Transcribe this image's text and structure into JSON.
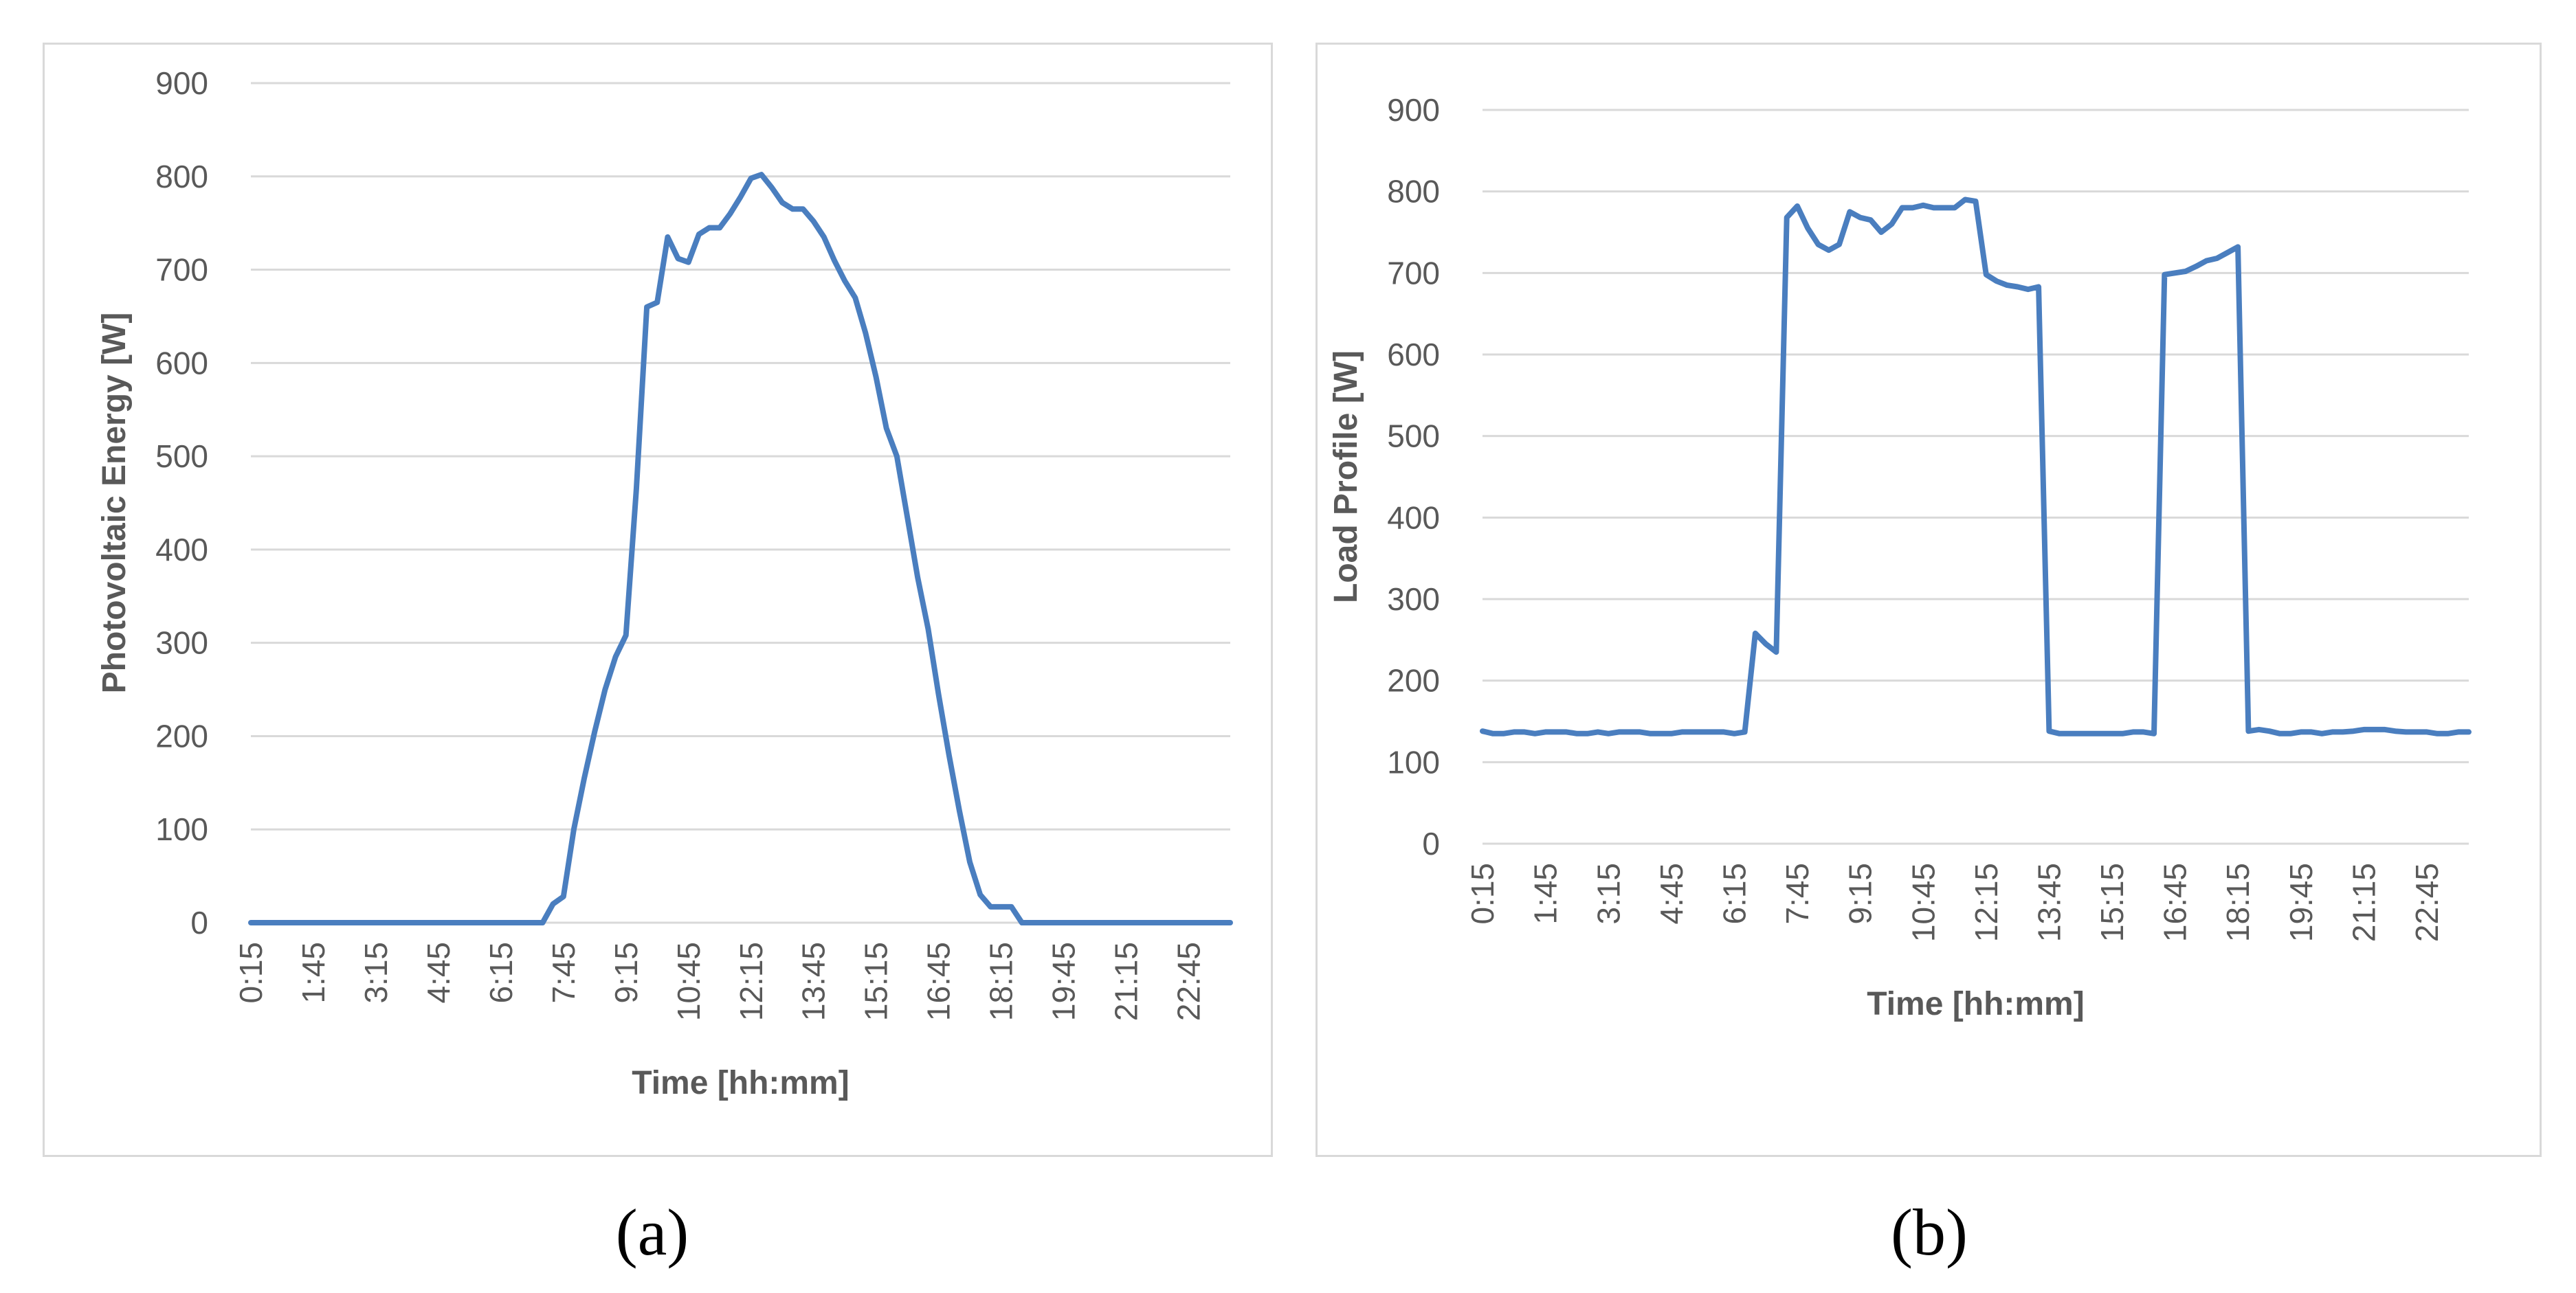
{
  "captions": {
    "a": "(a)",
    "b": "(b)"
  },
  "colors": {
    "line": "#4a7ebf",
    "grid": "#d9d9d9",
    "tick_text": "#595959",
    "axis_title": "#595959"
  },
  "chart_data": [
    {
      "type": "line",
      "title": "",
      "xlabel": "Time [hh:mm]",
      "ylabel": "Photovoltaic Energy [W]",
      "ylim": [
        0,
        900
      ],
      "yticks": [
        0,
        100,
        200,
        300,
        400,
        500,
        600,
        700,
        800,
        900
      ],
      "xtick_labels": [
        "0:15",
        "1:45",
        "3:15",
        "4:45",
        "6:15",
        "7:45",
        "9:15",
        "10:45",
        "12:15",
        "13:45",
        "15:15",
        "16:45",
        "18:15",
        "19:45",
        "21:15",
        "22:45"
      ],
      "grid": true,
      "legend": "none",
      "x": [
        "0:15",
        "0:30",
        "0:45",
        "1:00",
        "1:15",
        "1:30",
        "1:45",
        "2:00",
        "2:15",
        "2:30",
        "2:45",
        "3:00",
        "3:15",
        "3:30",
        "3:45",
        "4:00",
        "4:15",
        "4:30",
        "4:45",
        "5:00",
        "5:15",
        "5:30",
        "5:45",
        "6:00",
        "6:15",
        "6:30",
        "6:45",
        "7:00",
        "7:15",
        "7:30",
        "7:45",
        "8:00",
        "8:15",
        "8:30",
        "8:45",
        "9:00",
        "9:15",
        "9:30",
        "9:45",
        "10:00",
        "10:15",
        "10:30",
        "10:45",
        "11:00",
        "11:15",
        "11:30",
        "11:45",
        "12:00",
        "12:15",
        "12:30",
        "12:45",
        "13:00",
        "13:15",
        "13:30",
        "13:45",
        "14:00",
        "14:15",
        "14:30",
        "14:45",
        "15:00",
        "15:15",
        "15:30",
        "15:45",
        "16:00",
        "16:15",
        "16:30",
        "16:45",
        "17:00",
        "17:15",
        "17:30",
        "17:45",
        "18:00",
        "18:15",
        "18:30",
        "18:45",
        "19:00",
        "19:15",
        "19:30",
        "19:45",
        "20:00",
        "20:15",
        "20:30",
        "20:45",
        "21:00",
        "21:15",
        "21:30",
        "21:45",
        "22:00",
        "22:15",
        "22:30",
        "22:45",
        "23:00",
        "23:15",
        "23:30",
        "23:45"
      ],
      "series": [
        {
          "values": [
            0,
            0,
            0,
            0,
            0,
            0,
            0,
            0,
            0,
            0,
            0,
            0,
            0,
            0,
            0,
            0,
            0,
            0,
            0,
            0,
            0,
            0,
            0,
            0,
            0,
            0,
            0,
            0,
            0,
            20,
            28,
            100,
            155,
            205,
            250,
            285,
            308,
            465,
            660,
            665,
            735,
            712,
            708,
            738,
            745,
            745,
            760,
            778,
            798,
            802,
            788,
            772,
            765,
            765,
            752,
            735,
            710,
            688,
            670,
            632,
            585,
            530,
            500,
            435,
            370,
            315,
            245,
            180,
            120,
            65,
            30,
            17,
            17,
            17,
            0,
            0,
            0,
            0,
            0,
            0,
            0,
            0,
            0,
            0,
            0,
            0,
            0,
            0,
            0,
            0,
            0,
            0,
            0,
            0,
            0
          ]
        }
      ]
    },
    {
      "type": "line",
      "title": "",
      "xlabel": "Time [hh:mm]",
      "ylabel": "Load Profile [W]",
      "ylim": [
        0,
        900
      ],
      "yticks": [
        0,
        100,
        200,
        300,
        400,
        500,
        600,
        700,
        800,
        900
      ],
      "xtick_labels": [
        "0:15",
        "1:45",
        "3:15",
        "4:45",
        "6:15",
        "7:45",
        "9:15",
        "10:45",
        "12:15",
        "13:45",
        "15:15",
        "16:45",
        "18:15",
        "19:45",
        "21:15",
        "22:45"
      ],
      "grid": true,
      "legend": "none",
      "x": [
        "0:15",
        "0:30",
        "0:45",
        "1:00",
        "1:15",
        "1:30",
        "1:45",
        "2:00",
        "2:15",
        "2:30",
        "2:45",
        "3:00",
        "3:15",
        "3:30",
        "3:45",
        "4:00",
        "4:15",
        "4:30",
        "4:45",
        "5:00",
        "5:15",
        "5:30",
        "5:45",
        "6:00",
        "6:15",
        "6:30",
        "6:45",
        "7:00",
        "7:15",
        "7:30",
        "7:45",
        "8:00",
        "8:15",
        "8:30",
        "8:45",
        "9:00",
        "9:15",
        "9:30",
        "9:45",
        "10:00",
        "10:15",
        "10:30",
        "10:45",
        "11:00",
        "11:15",
        "11:30",
        "11:45",
        "12:00",
        "12:15",
        "12:30",
        "12:45",
        "13:00",
        "13:15",
        "13:30",
        "13:45",
        "14:00",
        "14:15",
        "14:30",
        "14:45",
        "15:00",
        "15:15",
        "15:30",
        "15:45",
        "16:00",
        "16:15",
        "16:30",
        "16:45",
        "17:00",
        "17:15",
        "17:30",
        "17:45",
        "18:00",
        "18:15",
        "18:30",
        "18:45",
        "19:00",
        "19:15",
        "19:30",
        "19:45",
        "20:00",
        "20:15",
        "20:30",
        "20:45",
        "21:00",
        "21:15",
        "21:30",
        "21:45",
        "22:00",
        "22:15",
        "22:30",
        "22:45",
        "23:00",
        "23:15",
        "23:30",
        "23:45"
      ],
      "series": [
        {
          "values": [
            138,
            135,
            135,
            137,
            137,
            135,
            137,
            137,
            137,
            135,
            135,
            137,
            135,
            137,
            137,
            137,
            135,
            135,
            135,
            137,
            137,
            137,
            137,
            137,
            135,
            137,
            258,
            245,
            235,
            768,
            782,
            755,
            735,
            728,
            735,
            775,
            768,
            765,
            750,
            760,
            780,
            780,
            783,
            780,
            780,
            780,
            790,
            788,
            698,
            690,
            685,
            683,
            680,
            683,
            138,
            135,
            135,
            135,
            135,
            135,
            135,
            135,
            137,
            137,
            135,
            698,
            700,
            702,
            708,
            715,
            718,
            725,
            732,
            138,
            140,
            138,
            135,
            135,
            137,
            137,
            135,
            137,
            137,
            138,
            140,
            140,
            140,
            138,
            137,
            137,
            137,
            135,
            135,
            137,
            137
          ]
        }
      ]
    }
  ]
}
